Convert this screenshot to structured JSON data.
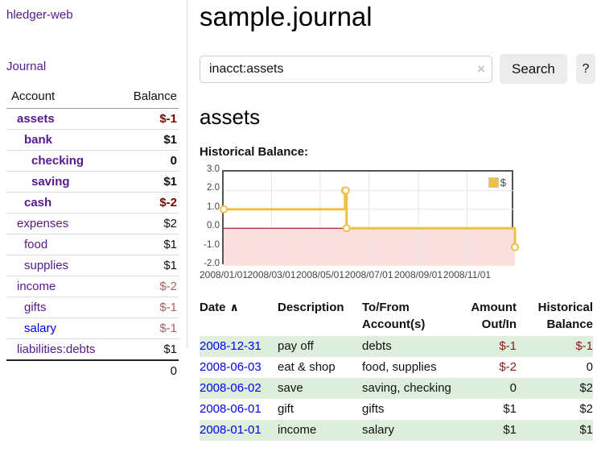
{
  "sidebar": {
    "brand": "hledger-web",
    "journal_link": "Journal",
    "accounts_table": {
      "headers": [
        "Account",
        "Balance"
      ],
      "rows": [
        {
          "name": "assets",
          "depth": 1,
          "bold": true,
          "link_color": "purple",
          "balance": "$-1",
          "balance_style": "neg-strong"
        },
        {
          "name": "bank",
          "depth": 2,
          "bold": true,
          "link_color": "purple",
          "balance": "$1",
          "balance_style": "normal"
        },
        {
          "name": "checking",
          "depth": 3,
          "bold": true,
          "link_color": "purple",
          "balance": "0",
          "balance_style": "normal"
        },
        {
          "name": "saving",
          "depth": 3,
          "bold": true,
          "link_color": "purple",
          "balance": "$1",
          "balance_style": "normal"
        },
        {
          "name": "cash",
          "depth": 2,
          "bold": true,
          "link_color": "purple",
          "balance": "$-2",
          "balance_style": "neg-strong"
        },
        {
          "name": "expenses",
          "depth": 1,
          "bold": false,
          "link_color": "purple",
          "balance": "$2",
          "balance_style": "normal"
        },
        {
          "name": "food",
          "depth": 2,
          "bold": false,
          "link_color": "purple",
          "balance": "$1",
          "balance_style": "normal"
        },
        {
          "name": "supplies",
          "depth": 2,
          "bold": false,
          "link_color": "purple",
          "balance": "$1",
          "balance_style": "normal"
        },
        {
          "name": "income",
          "depth": 1,
          "bold": false,
          "link_color": "purple",
          "balance": "$-2",
          "balance_style": "neg-soft"
        },
        {
          "name": "gifts",
          "depth": 2,
          "bold": false,
          "link_color": "purple",
          "balance": "$-1",
          "balance_style": "neg-soft"
        },
        {
          "name": "salary",
          "depth": 2,
          "bold": false,
          "link_color": "blue",
          "balance": "$-1",
          "balance_style": "neg-soft"
        },
        {
          "name": "liabilities:debts",
          "depth": 1,
          "bold": false,
          "link_color": "purple",
          "balance": "$1",
          "balance_style": "normal"
        }
      ],
      "total": "0"
    }
  },
  "main": {
    "title": "sample.journal",
    "search": {
      "query": "inacct:assets",
      "clear_icon": "×",
      "search_label": "Search",
      "help_label": "?"
    },
    "account_heading": "assets",
    "chart_label": "Historical Balance:"
  },
  "chart_data": {
    "type": "line",
    "step": true,
    "title": "Historical Balance:",
    "legend": {
      "label": "$",
      "swatch_color": "#edc240",
      "position": "top-right"
    },
    "series": [
      {
        "name": "$",
        "color": "#edc240",
        "points": [
          [
            "2008-01-01",
            1
          ],
          [
            "2008-06-01",
            2
          ],
          [
            "2008-06-02",
            2
          ],
          [
            "2008-06-03",
            0
          ],
          [
            "2008-12-31",
            -1
          ]
        ]
      }
    ],
    "x_range": [
      "2008-01-01",
      "2008-12-31"
    ],
    "x_ticks": [
      {
        "date": "2008-01-01",
        "label": "2008/01/01"
      },
      {
        "date": "2008-03-01",
        "label": "2008/03/01"
      },
      {
        "date": "2008-05-01",
        "label": "2008/05/01"
      },
      {
        "date": "2008-07-01",
        "label": "2008/07/01"
      },
      {
        "date": "2008-09-01",
        "label": "2008/09/01"
      },
      {
        "date": "2008-11-01",
        "label": "2008/11/01"
      }
    ],
    "y_ticks": [
      {
        "value": 3,
        "label": "3.0"
      },
      {
        "value": 2,
        "label": "2.0"
      },
      {
        "value": 1,
        "label": "1.0"
      },
      {
        "value": 0,
        "label": "0.0"
      },
      {
        "value": -1,
        "label": "-1.0"
      },
      {
        "value": -2,
        "label": "-2.0"
      }
    ],
    "ylim": [
      -2,
      3
    ],
    "grid": true,
    "grid_color": "#e6e6e6",
    "zero_line_color": "#8b0000",
    "negative_region_color": "#fbe0e0",
    "plot_border_color": "#545454"
  },
  "register_table": {
    "headers": {
      "date": "Date",
      "sort_icon": "∧",
      "description": "Description",
      "accounts": "To/From Account(s)",
      "amount": "Amount Out/In",
      "balance": "Historical Balance"
    },
    "rows": [
      {
        "date": "2008-12-31",
        "description": "pay off",
        "accounts": "debts",
        "amount": "$-1",
        "amount_negative": true,
        "balance": "$-1",
        "balance_negative": true,
        "highlight": true
      },
      {
        "date": "2008-06-03",
        "description": "eat & shop",
        "accounts": "food, supplies",
        "amount": "$-2",
        "amount_negative": true,
        "balance": "0",
        "balance_negative": false,
        "highlight": false
      },
      {
        "date": "2008-06-02",
        "description": "save",
        "accounts": "saving, checking",
        "amount": "0",
        "amount_negative": false,
        "balance": "$2",
        "balance_negative": false,
        "highlight": true
      },
      {
        "date": "2008-06-01",
        "description": "gift",
        "accounts": "gifts",
        "amount": "$1",
        "amount_negative": false,
        "balance": "$2",
        "balance_negative": false,
        "highlight": false
      },
      {
        "date": "2008-01-01",
        "description": "income",
        "accounts": "salary",
        "amount": "$1",
        "amount_negative": false,
        "balance": "$1",
        "balance_negative": false,
        "highlight": true
      }
    ]
  }
}
